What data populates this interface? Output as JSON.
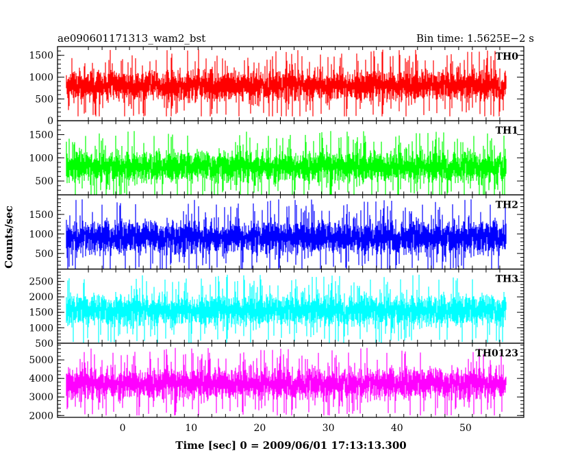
{
  "header": {
    "left_title": "ae090601171313_wam2_bst",
    "right_title": "Bin time: 1.5625E−2 s"
  },
  "chart_data": {
    "type": "line",
    "title": "ae090601171313_wam2_bst",
    "subtitle": "Bin time: 1.5625E−2 s",
    "xlabel": "Time [sec] 0 = 2009/06/01 17:13:13.300",
    "ylabel": "Counts/sec",
    "xlim": [
      -9.5,
      58.5
    ],
    "x_ticks": [
      0,
      10,
      20,
      30,
      40,
      50
    ],
    "x_data_range": [
      -8.2,
      56.0
    ],
    "bin_time": 0.015625,
    "grid": false,
    "panels": [
      {
        "name": "TH0",
        "color": "#ff0000",
        "ylim": [
          0,
          1700
        ],
        "y_ticks": [
          0,
          500,
          1000,
          1500
        ],
        "y_range": [
          100,
          1700
        ],
        "mean": 800,
        "spread": 320
      },
      {
        "name": "TH1",
        "color": "#00ff00",
        "ylim": [
          200,
          1800
        ],
        "y_ticks": [
          500,
          1000,
          1500
        ],
        "y_range": [
          200,
          1650
        ],
        "mean": 800,
        "spread": 300
      },
      {
        "name": "TH2",
        "color": "#0000ff",
        "ylim": [
          100,
          2000
        ],
        "y_ticks": [
          500,
          1000,
          1500
        ],
        "y_range": [
          100,
          1950
        ],
        "mean": 900,
        "spread": 380
      },
      {
        "name": "TH3",
        "color": "#00ffff",
        "ylim": [
          500,
          2900
        ],
        "y_ticks": [
          500,
          1000,
          1500,
          2000,
          2500
        ],
        "y_range": [
          500,
          2800
        ],
        "mean": 1550,
        "spread": 450
      },
      {
        "name": "TH0123",
        "color": "#ff00ff",
        "ylim": [
          1900,
          5900
        ],
        "y_ticks": [
          2000,
          3000,
          4000,
          5000
        ],
        "y_range": [
          2000,
          5700
        ],
        "mean": 3700,
        "spread": 750
      }
    ]
  }
}
